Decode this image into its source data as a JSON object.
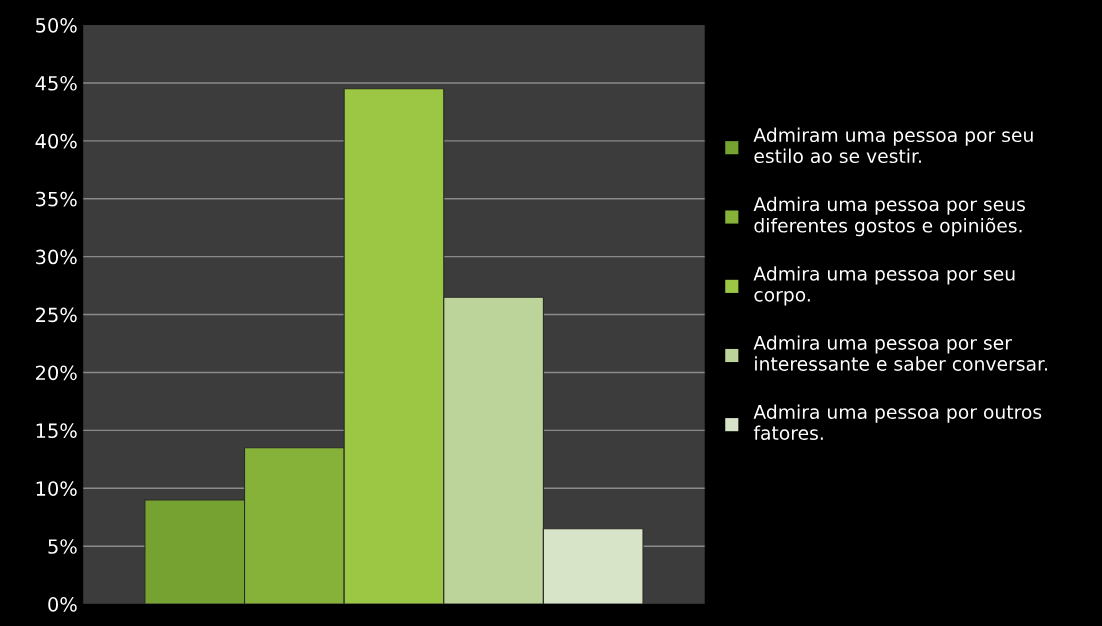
{
  "chart_data": {
    "type": "bar",
    "categories": [
      null
    ],
    "series": [
      {
        "name": "Admiram uma pessoa por seu\nestilo ao se vestir.",
        "color": "#76a232",
        "values": [
          9
        ]
      },
      {
        "name": "Admira uma pessoa por seus\ndiferentes gostos e opiniões.",
        "color": "#86b23a",
        "values": [
          13.5
        ]
      },
      {
        "name": "Admira uma pessoa por seu\ncorpo.",
        "color": "#9cc744",
        "values": [
          44.5
        ]
      },
      {
        "name": "Admira uma pessoa por ser\ninteressante e saber conversar.",
        "color": "#bcd49a",
        "values": [
          26.5
        ]
      },
      {
        "name": "Admira uma pessoa por outros\nfatores.",
        "color": "#d8e4c8",
        "values": [
          6.5
        ]
      }
    ],
    "ylim": [
      0,
      50
    ],
    "yticks": [
      {
        "value": 0,
        "label": "0%"
      },
      {
        "value": 5,
        "label": "5%"
      },
      {
        "value": 10,
        "label": "10%"
      },
      {
        "value": 15,
        "label": "15%"
      },
      {
        "value": 20,
        "label": "20%"
      },
      {
        "value": 25,
        "label": "25%"
      },
      {
        "value": 30,
        "label": "30%"
      },
      {
        "value": 35,
        "label": "35%"
      },
      {
        "value": 40,
        "label": "40%"
      },
      {
        "value": 45,
        "label": "45%"
      },
      {
        "value": 50,
        "label": "50%"
      }
    ],
    "grid": "y",
    "legend": "right"
  }
}
